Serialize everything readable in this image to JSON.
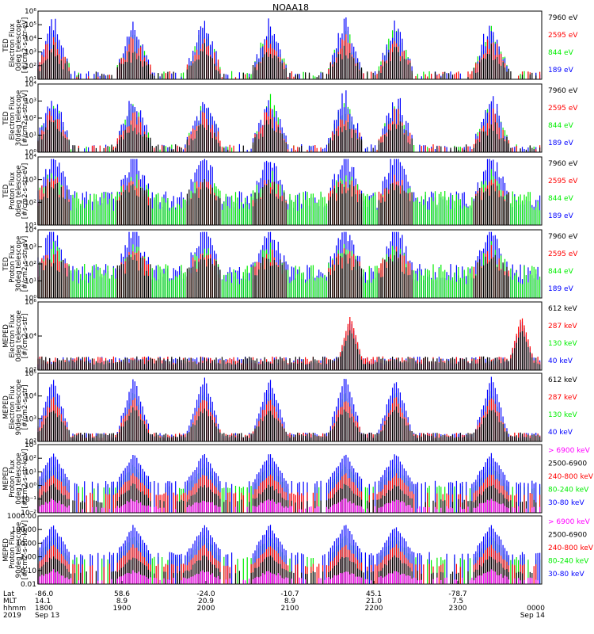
{
  "title": "NOAA18",
  "colors": {
    "black": "#000000",
    "red": "#ff0000",
    "green": "#00ee00",
    "blue": "#0000ff",
    "magenta": "#ff00ff"
  },
  "panels": [
    {
      "ylabel": [
        "TED",
        "Electron Flux",
        "0deg telescope",
        "[#/cm2-s-str-eV]"
      ],
      "yticks": [
        "10¹",
        "10²",
        "10³",
        "10⁴",
        "10⁵",
        "10⁶"
      ],
      "tickstyle": "exp",
      "legend": [
        {
          "text": "7960 eV",
          "color": "black"
        },
        {
          "text": "2595 eV",
          "color": "red"
        },
        {
          "text": "844 eV",
          "color": "green"
        },
        {
          "text": "189 eV",
          "color": "blue"
        }
      ],
      "style": "ted_e",
      "seed": 11
    },
    {
      "ylabel": [
        "TED",
        "Electron Flux",
        "30deg telescope",
        "[#/cm2-s-str-eV]"
      ],
      "yticks": [
        "10⁰",
        "10¹",
        "10²",
        "10³",
        "10⁴"
      ],
      "tickstyle": "exp",
      "legend": [
        {
          "text": "7960 eV",
          "color": "black"
        },
        {
          "text": "2595 eV",
          "color": "red"
        },
        {
          "text": "844 eV",
          "color": "green"
        },
        {
          "text": "189 eV",
          "color": "blue"
        }
      ],
      "style": "ted_e",
      "seed": 23
    },
    {
      "ylabel": [
        "TED",
        "Proton Flux",
        "0deg telescope",
        "[#/cm2-s-str-eV]"
      ],
      "yticks": [
        "10¹",
        "10²",
        "10³",
        "10⁴"
      ],
      "tickstyle": "exp",
      "legend": [
        {
          "text": "7960 eV",
          "color": "black"
        },
        {
          "text": "2595 eV",
          "color": "red"
        },
        {
          "text": "844 eV",
          "color": "green"
        },
        {
          "text": "189 eV",
          "color": "blue"
        }
      ],
      "style": "ted_p",
      "seed": 37
    },
    {
      "ylabel": [
        "TED",
        "Proton Flux",
        "30deg telescope",
        "[#/cm2-s-str-eV]"
      ],
      "yticks": [
        "10⁰",
        "10¹",
        "10²",
        "10³",
        "10⁴"
      ],
      "tickstyle": "exp",
      "legend": [
        {
          "text": "7960 eV",
          "color": "black"
        },
        {
          "text": "2595 eV",
          "color": "red"
        },
        {
          "text": "844 eV",
          "color": "green"
        },
        {
          "text": "189 eV",
          "color": "blue"
        }
      ],
      "style": "ted_p2",
      "seed": 41
    },
    {
      "ylabel": [
        "MEPED",
        "Electron Flux",
        "0deg telescope",
        "[#/cm2-s-str]"
      ],
      "yticks": [
        "10²",
        "10⁴",
        "10⁶"
      ],
      "tickstyle": "exp",
      "legend": [
        {
          "text": "612 keV",
          "color": "black"
        },
        {
          "text": "287 keV",
          "color": "red"
        },
        {
          "text": "130 keV",
          "color": "green"
        },
        {
          "text": "40 keV",
          "color": "blue"
        }
      ],
      "style": "meped_e0",
      "seed": 53
    },
    {
      "ylabel": [
        "MEPED",
        "Electron Flux",
        "90deg telescope",
        "[#/cm2-s-str]"
      ],
      "yticks": [
        "10²",
        "10³",
        "10⁴",
        "10⁵"
      ],
      "tickstyle": "exp",
      "legend": [
        {
          "text": "612 keV",
          "color": "black"
        },
        {
          "text": "287 keV",
          "color": "red"
        },
        {
          "text": "130 keV",
          "color": "green"
        },
        {
          "text": "40 keV",
          "color": "blue"
        }
      ],
      "style": "meped_e90",
      "seed": 67
    },
    {
      "ylabel": [
        "MEPED",
        "Proton Flux",
        "0deg telescope",
        "[#/cm2-s-str-keV]"
      ],
      "yticks": [
        "10⁻²",
        "10⁻¹",
        "10⁰",
        "10¹",
        "10²",
        "10³"
      ],
      "tickstyle": "exp",
      "legend": [
        {
          "text": "> 6900 keV",
          "color": "magenta"
        },
        {
          "text": "2500-6900",
          "color": "black"
        },
        {
          "text": "240-800 keV",
          "color": "red"
        },
        {
          "text": "80-240 keV",
          "color": "green"
        },
        {
          "text": "30-80 keV",
          "color": "blue"
        }
      ],
      "style": "meped_p",
      "seed": 79
    },
    {
      "ylabel": [
        "MEPED",
        "Proton Flux",
        "90deg telescope",
        "[#/cm2-s-str-keV]"
      ],
      "yticks": [
        "0.01",
        "0.10",
        "1.00",
        "10.00",
        "100.00",
        "1000.00"
      ],
      "tickstyle": "dec",
      "legend": [
        {
          "text": "> 6900 keV",
          "color": "magenta"
        },
        {
          "text": "2500-6900",
          "color": "black"
        },
        {
          "text": "240-800 keV",
          "color": "red"
        },
        {
          "text": "80-240 keV",
          "color": "green"
        },
        {
          "text": "30-80 keV",
          "color": "blue"
        }
      ],
      "style": "meped_p",
      "seed": 97
    }
  ],
  "xaxis": {
    "row_labels": [
      "Lat",
      "MLT",
      "hhmm",
      "2019"
    ],
    "columns": [
      {
        "lat": "-86.0",
        "mlt": "14.1",
        "hhmm": "1800",
        "date": "Sep 13"
      },
      {
        "lat": "58.6",
        "mlt": "8.9",
        "hhmm": "1900",
        "date": ""
      },
      {
        "lat": "-24.0",
        "mlt": "20.9",
        "hhmm": "2000",
        "date": ""
      },
      {
        "lat": "-10.7",
        "mlt": "8.9",
        "hhmm": "2100",
        "date": ""
      },
      {
        "lat": "45.1",
        "mlt": "21.0",
        "hhmm": "2200",
        "date": ""
      },
      {
        "lat": "-78.7",
        "mlt": "7.5",
        "hhmm": "2300",
        "date": ""
      },
      {
        "lat": "",
        "mlt": "",
        "hhmm": "0000",
        "date": "Sep 14"
      }
    ]
  }
}
